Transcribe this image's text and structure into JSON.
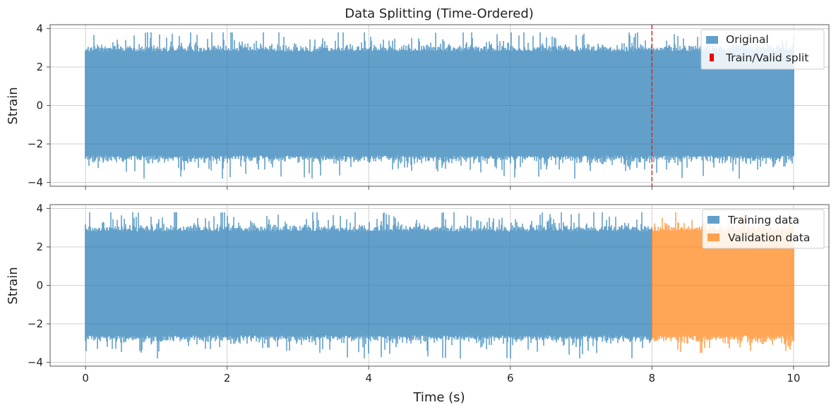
{
  "figure": {
    "title": "Data Splitting (Time-Ordered)"
  },
  "chart_data": [
    {
      "type": "line",
      "title": "Data Splitting (Time-Ordered)",
      "xlabel": "",
      "ylabel": "Strain",
      "xlim": [
        -0.5,
        10.5
      ],
      "ylim": [
        -4.2,
        4.2
      ],
      "x_ticks": [
        0,
        2,
        4,
        6,
        8,
        10
      ],
      "y_ticks": [
        4,
        2,
        0,
        -2,
        -4
      ],
      "y_tick_labels": [
        "4",
        "2",
        "0",
        "−2",
        "−4"
      ],
      "x_tick_labels_visible": false,
      "grid": true,
      "legend_position": "top-right",
      "series": [
        {
          "name": "Original",
          "color": "#1f77b4",
          "x_range": [
            0,
            10
          ],
          "envelope_range": [
            -3.8,
            3.8
          ],
          "typical_range": [
            -2.6,
            2.8
          ]
        }
      ],
      "vertical_lines": [
        {
          "name": "Train/Valid split",
          "x": 8,
          "color": "#d62728",
          "style": "dashed"
        }
      ],
      "legend": [
        "Original",
        "Train/Valid split"
      ]
    },
    {
      "type": "line",
      "title": "",
      "xlabel": "Time (s)",
      "ylabel": "Strain",
      "xlim": [
        -0.5,
        10.5
      ],
      "ylim": [
        -4.2,
        4.2
      ],
      "x_ticks": [
        0,
        2,
        4,
        6,
        8,
        10
      ],
      "x_tick_labels": [
        "0",
        "2",
        "4",
        "6",
        "8",
        "10"
      ],
      "y_ticks": [
        4,
        2,
        0,
        -2,
        -4
      ],
      "y_tick_labels": [
        "4",
        "2",
        "0",
        "−2",
        "−4"
      ],
      "grid": true,
      "legend_position": "top-right",
      "series": [
        {
          "name": "Training data",
          "color": "#1f77b4",
          "x_range": [
            0,
            8
          ],
          "envelope_range": [
            -3.8,
            3.8
          ],
          "typical_range": [
            -2.6,
            2.8
          ]
        },
        {
          "name": "Validation data",
          "color": "#ff7f0e",
          "x_range": [
            8,
            10
          ],
          "envelope_range": [
            -3.8,
            3.8
          ],
          "typical_range": [
            -2.6,
            2.8
          ]
        }
      ],
      "legend": [
        "Training data",
        "Validation data"
      ]
    }
  ]
}
